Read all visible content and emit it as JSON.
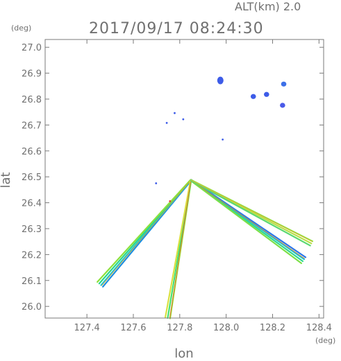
{
  "chart_data": {
    "type": "scatter",
    "title": "2017/09/17 08:24:30",
    "subtitle": "ALT(km) 2.0",
    "xlabel": "lon",
    "ylabel": "lat",
    "xunit": "(deg)",
    "yunit": "(deg)",
    "xlim": [
      127.22,
      128.42
    ],
    "ylim": [
      25.955,
      27.03
    ],
    "xticks": [
      127.4,
      127.6,
      127.8,
      128.0,
      128.2,
      128.4
    ],
    "yticks": [
      26.0,
      26.1,
      26.2,
      26.3,
      26.4,
      26.5,
      26.6,
      26.7,
      26.8,
      26.9,
      27.0
    ],
    "grid": false,
    "radar_origin": {
      "lon": 127.848,
      "lat": 26.487
    },
    "beams": [
      {
        "name": "",
        "from": [
          127.848,
          26.487
        ],
        "to": [
          127.457,
          26.085
        ],
        "colors": [
          "#1e8fe0",
          "#19c7d8",
          "#2ad88a",
          "#8de03c"
        ],
        "edge_color": "#e0a020"
      },
      {
        "name": "",
        "from": [
          127.848,
          26.487
        ],
        "to": [
          127.748,
          25.955
        ],
        "colors": [
          "#9be03c",
          "#46e070",
          "#d8e040"
        ],
        "edge_color": "#e06020"
      },
      {
        "name": "",
        "from": [
          127.848,
          26.487
        ],
        "to": [
          128.333,
          26.178
        ],
        "colors": [
          "#2d78e8",
          "#19c4d8",
          "#30d890",
          "#7de048"
        ],
        "edge_color": "#e08020"
      },
      {
        "name": "",
        "from": [
          127.848,
          26.487
        ],
        "to": [
          128.367,
          26.243
        ],
        "colors": [
          "#8de03c",
          "#b8e048",
          "#5ad870"
        ],
        "edge_color": "#e0b030"
      }
    ],
    "echoes": [
      {
        "lon": 127.975,
        "lat": 26.872,
        "color": "#3d5ce8"
      },
      {
        "lon": 128.117,
        "lat": 26.81,
        "color": "#3d5ce8"
      },
      {
        "lon": 128.174,
        "lat": 26.818,
        "color": "#3d5ce8"
      },
      {
        "lon": 128.243,
        "lat": 26.776,
        "color": "#4a5ae8"
      },
      {
        "lon": 128.248,
        "lat": 26.858,
        "color": "#3d70e8"
      },
      {
        "lon": 127.778,
        "lat": 26.746,
        "color": "#3d5ce8"
      },
      {
        "lon": 127.815,
        "lat": 26.722,
        "color": "#3d5ce8"
      },
      {
        "lon": 127.744,
        "lat": 26.708,
        "color": "#3d5ce8"
      },
      {
        "lon": 127.985,
        "lat": 26.644,
        "color": "#3d5ce8"
      },
      {
        "lon": 127.698,
        "lat": 26.475,
        "color": "#3d5ce8"
      },
      {
        "lon": 127.758,
        "lat": 26.406,
        "color": "#e83030"
      }
    ]
  }
}
